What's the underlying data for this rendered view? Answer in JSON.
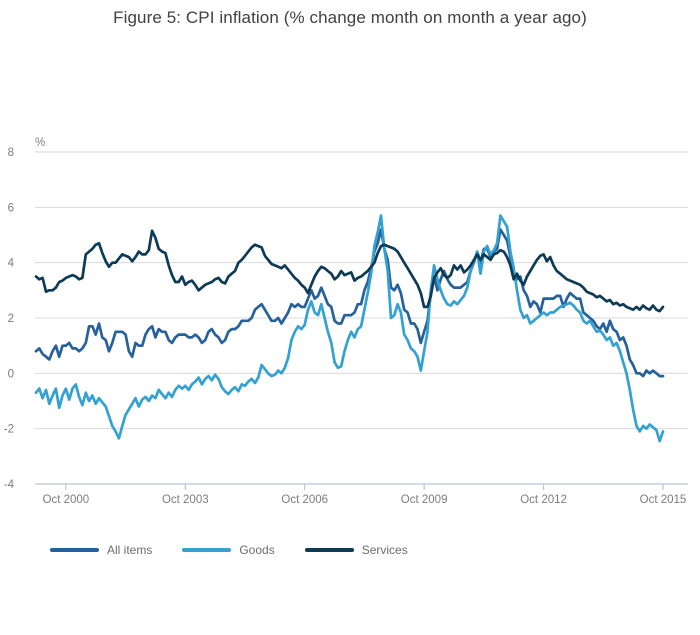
{
  "title": "Figure 5: CPI inflation (% change month on month a year ago)",
  "style": {
    "title_color": "#414143",
    "gridline_color": "#d9d9d9",
    "axis_color": "#b9c6d4",
    "tick_label_color": "#7c7c7c",
    "legend_label_color": "#6d6d6d",
    "background_color": "#ffffff"
  },
  "chart_data": {
    "type": "line",
    "title": "Figure 5: CPI inflation (% change month on month a year ago)",
    "unit_label": "%",
    "x_start": "Jan 2000",
    "x_end": "Oct 2015",
    "x_frequency": "monthly",
    "x_tick_labels": [
      "Oct 2000",
      "Oct 2003",
      "Oct 2006",
      "Oct 2009",
      "Oct 2012",
      "Oct 2015"
    ],
    "x_tick_month_indices": [
      9,
      45,
      81,
      117,
      153,
      189
    ],
    "ylim": [
      -4,
      8
    ],
    "y_ticks": [
      8,
      6,
      4,
      2,
      0,
      -2,
      -4
    ],
    "grid": "horizontal",
    "legend_position": "bottom-left",
    "series": [
      {
        "name": "All items",
        "color": "#27619b",
        "values": [
          0.8,
          0.9,
          0.7,
          0.6,
          0.5,
          0.8,
          1.0,
          0.6,
          1.0,
          1.0,
          1.1,
          0.9,
          0.9,
          0.8,
          0.9,
          1.1,
          1.7,
          1.7,
          1.4,
          1.8,
          1.3,
          1.2,
          0.8,
          1.1,
          1.5,
          1.5,
          1.5,
          1.4,
          0.8,
          0.6,
          1.1,
          1.0,
          1.0,
          1.4,
          1.6,
          1.7,
          1.3,
          1.6,
          1.5,
          1.5,
          1.2,
          1.1,
          1.3,
          1.4,
          1.4,
          1.4,
          1.3,
          1.3,
          1.4,
          1.3,
          1.1,
          1.2,
          1.5,
          1.6,
          1.4,
          1.3,
          1.1,
          1.2,
          1.5,
          1.6,
          1.6,
          1.7,
          1.9,
          1.9,
          1.9,
          2.0,
          2.3,
          2.4,
          2.5,
          2.3,
          2.1,
          1.9,
          1.9,
          2.0,
          1.8,
          2.0,
          2.2,
          2.5,
          2.4,
          2.5,
          2.4,
          2.4,
          2.7,
          3.0,
          2.7,
          2.8,
          3.1,
          2.8,
          2.5,
          2.4,
          1.9,
          1.8,
          1.8,
          2.1,
          2.1,
          2.1,
          2.2,
          2.5,
          2.5,
          3.0,
          3.3,
          3.8,
          4.4,
          4.7,
          5.2,
          4.5,
          4.1,
          3.1,
          3.0,
          3.2,
          2.9,
          2.3,
          2.2,
          1.8,
          1.8,
          1.6,
          1.1,
          1.5,
          1.9,
          2.9,
          3.5,
          3.0,
          3.4,
          3.7,
          3.4,
          3.2,
          3.1,
          3.1,
          3.1,
          3.2,
          3.3,
          3.7,
          4.0,
          4.4,
          4.0,
          4.5,
          4.5,
          4.2,
          4.4,
          4.5,
          5.2,
          5.0,
          4.8,
          4.2,
          3.6,
          3.4,
          3.5,
          3.0,
          2.8,
          2.4,
          2.6,
          2.5,
          2.2,
          2.7,
          2.7,
          2.7,
          2.7,
          2.8,
          2.8,
          2.4,
          2.7,
          2.9,
          2.8,
          2.7,
          2.7,
          2.2,
          2.1,
          2.0,
          1.9,
          1.7,
          1.6,
          1.8,
          1.5,
          1.9,
          1.6,
          1.5,
          1.2,
          1.3,
          1.0,
          0.5,
          0.3,
          0.0,
          0.0,
          -0.1,
          0.1,
          0.0,
          0.1,
          0.0,
          -0.1,
          -0.1
        ]
      },
      {
        "name": "Goods",
        "color": "#33a1d1",
        "values": [
          -0.7,
          -0.55,
          -0.9,
          -0.6,
          -1.1,
          -0.8,
          -0.55,
          -1.25,
          -0.8,
          -0.55,
          -0.95,
          -0.55,
          -0.4,
          -0.85,
          -1.15,
          -0.7,
          -1.0,
          -0.8,
          -1.1,
          -0.9,
          -1.05,
          -1.2,
          -1.55,
          -1.9,
          -2.1,
          -2.35,
          -1.9,
          -1.5,
          -1.3,
          -1.1,
          -0.9,
          -1.2,
          -0.95,
          -0.85,
          -1.0,
          -0.8,
          -0.9,
          -0.6,
          -0.75,
          -0.9,
          -0.7,
          -0.85,
          -0.6,
          -0.45,
          -0.55,
          -0.45,
          -0.6,
          -0.4,
          -0.3,
          -0.15,
          -0.4,
          -0.2,
          -0.1,
          -0.25,
          -0.05,
          -0.2,
          -0.5,
          -0.65,
          -0.75,
          -0.6,
          -0.5,
          -0.65,
          -0.4,
          -0.45,
          -0.3,
          -0.2,
          -0.35,
          -0.15,
          0.3,
          0.15,
          0.0,
          -0.1,
          -0.05,
          0.1,
          0.0,
          0.2,
          0.55,
          1.2,
          1.5,
          1.7,
          1.6,
          1.75,
          2.3,
          2.6,
          2.2,
          2.1,
          2.5,
          2.0,
          1.5,
          1.1,
          0.4,
          0.2,
          0.25,
          0.8,
          1.2,
          1.5,
          1.3,
          1.6,
          1.7,
          2.3,
          2.9,
          3.6,
          4.6,
          5.1,
          5.7,
          4.5,
          3.7,
          2.0,
          2.1,
          2.5,
          2.2,
          1.4,
          1.2,
          0.9,
          0.8,
          0.6,
          0.1,
          0.8,
          1.5,
          3.0,
          3.9,
          3.4,
          3.0,
          2.7,
          2.5,
          2.45,
          2.6,
          2.5,
          2.65,
          2.8,
          3.1,
          3.7,
          4.05,
          4.4,
          3.6,
          4.4,
          4.6,
          4.3,
          4.45,
          4.7,
          5.7,
          5.5,
          5.3,
          4.4,
          3.8,
          3.0,
          2.3,
          2.0,
          2.1,
          1.8,
          1.9,
          2.0,
          2.1,
          2.2,
          2.1,
          2.2,
          2.2,
          2.3,
          2.4,
          2.45,
          2.5,
          2.55,
          2.45,
          2.3,
          2.2,
          1.9,
          1.8,
          1.9,
          1.7,
          1.5,
          1.55,
          1.4,
          1.2,
          1.3,
          1.0,
          1.1,
          0.8,
          0.4,
          0.0,
          -0.6,
          -1.3,
          -1.9,
          -2.1,
          -1.9,
          -2.0,
          -1.85,
          -1.95,
          -2.05,
          -2.45,
          -2.1
        ]
      },
      {
        "name": "Services",
        "color": "#0d3b56",
        "values": [
          3.5,
          3.4,
          3.45,
          2.95,
          3.0,
          3.0,
          3.1,
          3.3,
          3.35,
          3.45,
          3.5,
          3.55,
          3.5,
          3.4,
          3.45,
          4.3,
          4.4,
          4.5,
          4.65,
          4.7,
          4.35,
          4.05,
          3.85,
          4.0,
          4.0,
          4.15,
          4.3,
          4.25,
          4.2,
          4.05,
          4.2,
          4.4,
          4.3,
          4.3,
          4.45,
          5.15,
          4.9,
          4.5,
          4.4,
          4.35,
          3.9,
          3.55,
          3.3,
          3.3,
          3.5,
          3.2,
          3.3,
          3.35,
          3.2,
          3.0,
          3.1,
          3.2,
          3.25,
          3.3,
          3.4,
          3.45,
          3.3,
          3.25,
          3.5,
          3.6,
          3.7,
          4.0,
          4.1,
          4.25,
          4.4,
          4.55,
          4.65,
          4.6,
          4.55,
          4.25,
          4.1,
          3.95,
          3.9,
          3.85,
          3.8,
          3.9,
          3.75,
          3.6,
          3.45,
          3.35,
          3.2,
          3.1,
          2.9,
          3.2,
          3.5,
          3.7,
          3.85,
          3.8,
          3.7,
          3.6,
          3.4,
          3.5,
          3.7,
          3.55,
          3.6,
          3.65,
          3.35,
          3.45,
          3.5,
          3.6,
          3.7,
          3.85,
          4.0,
          4.35,
          4.6,
          4.65,
          4.6,
          4.55,
          4.5,
          4.4,
          4.2,
          4.0,
          3.8,
          3.6,
          3.4,
          3.2,
          2.9,
          2.4,
          2.4,
          2.8,
          3.45,
          3.65,
          3.8,
          3.55,
          3.45,
          3.55,
          3.9,
          3.75,
          3.9,
          3.65,
          3.75,
          3.9,
          4.1,
          4.3,
          4.1,
          4.3,
          4.2,
          4.1,
          4.3,
          4.35,
          4.45,
          4.4,
          4.2,
          3.9,
          3.4,
          3.6,
          3.35,
          3.2,
          3.5,
          3.7,
          3.9,
          4.1,
          4.25,
          4.3,
          4.05,
          4.2,
          3.9,
          3.7,
          3.6,
          3.5,
          3.4,
          3.35,
          3.3,
          3.25,
          3.2,
          3.1,
          2.95,
          2.9,
          2.85,
          2.75,
          2.8,
          2.7,
          2.6,
          2.65,
          2.5,
          2.55,
          2.45,
          2.5,
          2.4,
          2.35,
          2.3,
          2.4,
          2.3,
          2.45,
          2.35,
          2.3,
          2.45,
          2.3,
          2.25,
          2.4
        ]
      }
    ]
  }
}
